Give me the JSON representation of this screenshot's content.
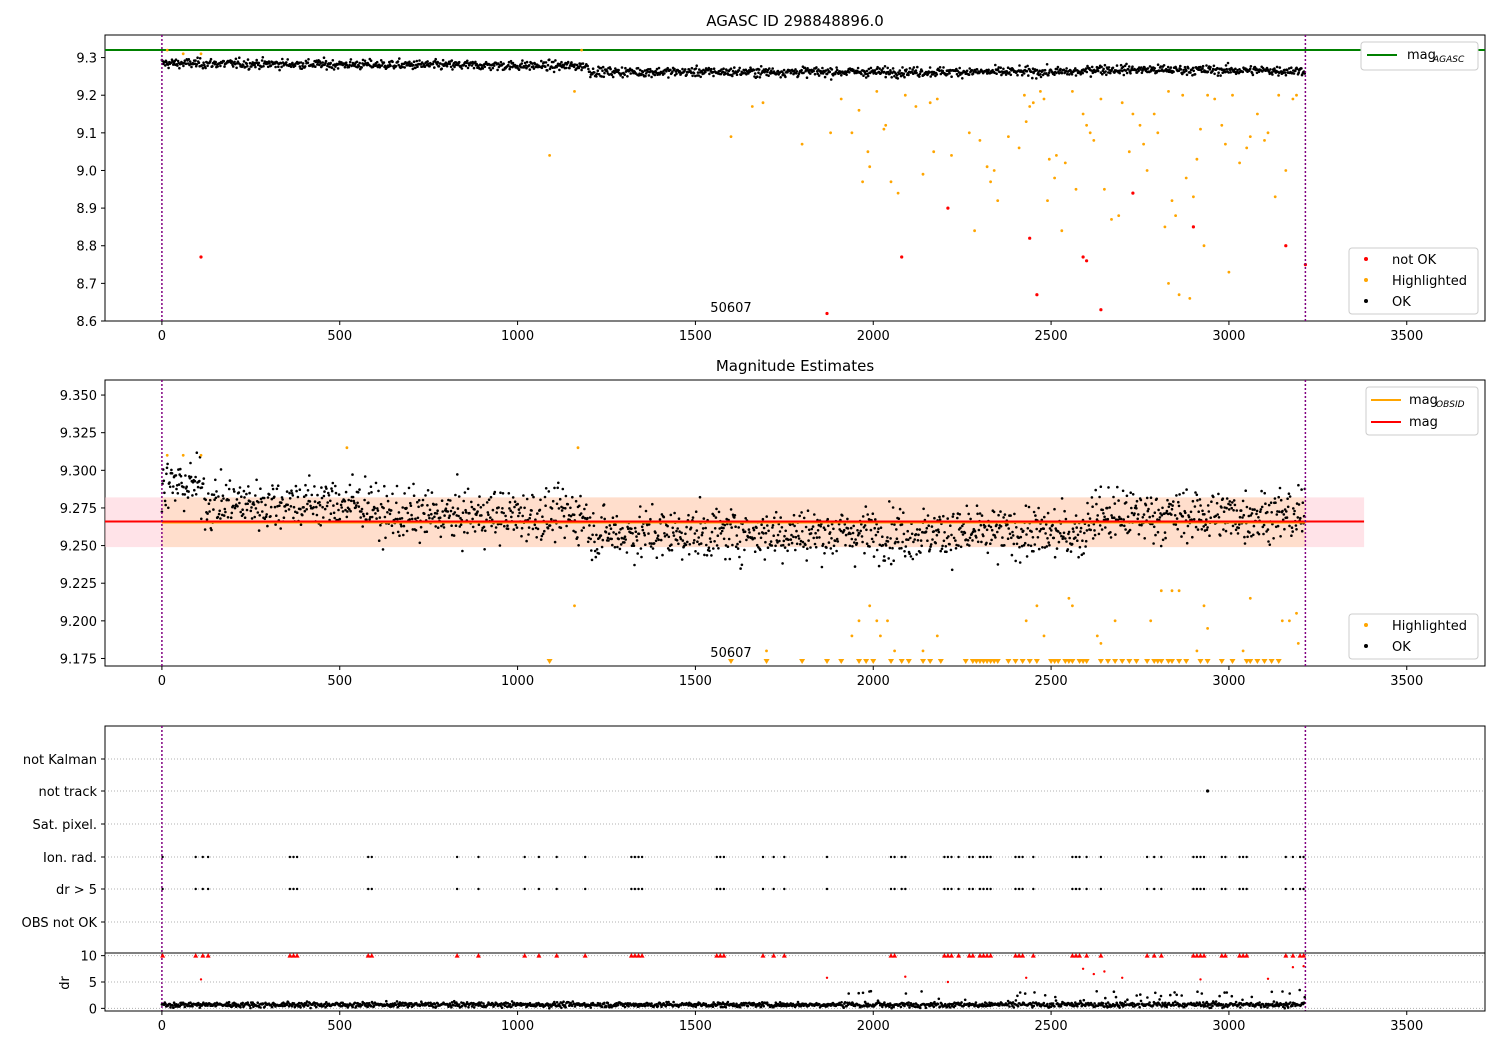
{
  "colors": {
    "ok": "#000000",
    "highlighted": "#ffa500",
    "not_ok": "#ff0000",
    "agasc_line": "#008000",
    "obsid_line": "#ffa500",
    "mag_line": "#ff0000",
    "mag_band": "#ffc0cb",
    "obsid_band": "#ffdab9",
    "boundary": "#800080"
  },
  "chart_data": [
    {
      "type": "scatter",
      "title": "AGASC ID 298848896.0",
      "xlim": [
        -160,
        3720
      ],
      "ylim": [
        8.6,
        9.36
      ],
      "xticks": [
        0,
        500,
        1000,
        1500,
        2000,
        2500,
        3000,
        3500
      ],
      "yticks": [
        8.6,
        8.7,
        8.8,
        8.9,
        9.0,
        9.1,
        9.2,
        9.3
      ],
      "ytick_labels": [
        "8.6",
        "8.7",
        "8.8",
        "8.9",
        "9.0",
        "9.1",
        "9.2",
        "9.3"
      ],
      "grid": false,
      "lines": [
        {
          "name": "mag_AGASC",
          "label_main": "mag",
          "label_sub": "AGASC",
          "y": 9.32,
          "color": "#008000"
        }
      ],
      "series": [
        {
          "name": "OK",
          "color": "#000000",
          "summary": "dense band",
          "y_center": 9.27
        },
        {
          "name": "Highlighted",
          "color": "#ffa500",
          "points": [
            [
              15,
              9.32
            ],
            [
              60,
              9.31
            ],
            [
              110,
              9.31
            ],
            [
              1090,
              9.04
            ],
            [
              1160,
              9.21
            ],
            [
              1180,
              9.32
            ],
            [
              1600,
              9.09
            ],
            [
              1660,
              9.17
            ],
            [
              1690,
              9.18
            ],
            [
              1800,
              9.07
            ],
            [
              1880,
              9.1
            ],
            [
              1910,
              9.19
            ],
            [
              1940,
              9.1
            ],
            [
              1960,
              9.16
            ],
            [
              1970,
              8.97
            ],
            [
              1985,
              9.05
            ],
            [
              1990,
              9.01
            ],
            [
              2010,
              9.21
            ],
            [
              2030,
              9.11
            ],
            [
              2035,
              9.12
            ],
            [
              2050,
              8.97
            ],
            [
              2070,
              8.94
            ],
            [
              2090,
              9.2
            ],
            [
              2120,
              9.17
            ],
            [
              2140,
              8.99
            ],
            [
              2160,
              9.18
            ],
            [
              2170,
              9.05
            ],
            [
              2180,
              9.19
            ],
            [
              2220,
              9.04
            ],
            [
              2270,
              9.1
            ],
            [
              2285,
              8.84
            ],
            [
              2300,
              9.08
            ],
            [
              2320,
              9.01
            ],
            [
              2330,
              8.97
            ],
            [
              2340,
              9.0
            ],
            [
              2350,
              8.92
            ],
            [
              2380,
              9.09
            ],
            [
              2410,
              9.06
            ],
            [
              2425,
              9.2
            ],
            [
              2430,
              9.13
            ],
            [
              2440,
              9.17
            ],
            [
              2450,
              9.18
            ],
            [
              2470,
              9.21
            ],
            [
              2480,
              9.19
            ],
            [
              2490,
              8.92
            ],
            [
              2495,
              9.03
            ],
            [
              2510,
              8.98
            ],
            [
              2515,
              9.04
            ],
            [
              2530,
              8.84
            ],
            [
              2540,
              9.02
            ],
            [
              2560,
              9.21
            ],
            [
              2570,
              8.95
            ],
            [
              2590,
              9.15
            ],
            [
              2600,
              9.12
            ],
            [
              2610,
              9.1
            ],
            [
              2620,
              9.08
            ],
            [
              2640,
              9.19
            ],
            [
              2650,
              8.95
            ],
            [
              2670,
              8.87
            ],
            [
              2690,
              8.88
            ],
            [
              2700,
              9.18
            ],
            [
              2720,
              9.05
            ],
            [
              2730,
              9.15
            ],
            [
              2750,
              9.12
            ],
            [
              2760,
              9.07
            ],
            [
              2770,
              9.0
            ],
            [
              2790,
              9.15
            ],
            [
              2800,
              9.1
            ],
            [
              2820,
              8.85
            ],
            [
              2830,
              9.21
            ],
            [
              2840,
              8.92
            ],
            [
              2850,
              8.88
            ],
            [
              2870,
              9.2
            ],
            [
              2880,
              8.98
            ],
            [
              2890,
              8.66
            ],
            [
              2900,
              8.93
            ],
            [
              2910,
              9.03
            ],
            [
              2920,
              9.11
            ],
            [
              2930,
              8.8
            ],
            [
              2940,
              9.2
            ],
            [
              2960,
              9.19
            ],
            [
              2980,
              9.12
            ],
            [
              2990,
              9.07
            ],
            [
              3000,
              8.73
            ],
            [
              3010,
              9.2
            ],
            [
              3030,
              9.02
            ],
            [
              3050,
              9.06
            ],
            [
              3060,
              9.09
            ],
            [
              3080,
              9.15
            ],
            [
              3100,
              9.08
            ],
            [
              3110,
              9.1
            ],
            [
              3130,
              8.93
            ],
            [
              3140,
              9.2
            ],
            [
              3160,
              9.0
            ],
            [
              3180,
              9.19
            ],
            [
              3190,
              9.2
            ],
            [
              2830,
              8.7
            ],
            [
              2860,
              8.67
            ]
          ]
        },
        {
          "name": "not OK",
          "color": "#ff0000",
          "points": [
            [
              110,
              8.77
            ],
            [
              1870,
              8.62
            ],
            [
              2080,
              8.77
            ],
            [
              2210,
              8.9
            ],
            [
              2440,
              8.82
            ],
            [
              2460,
              8.67
            ],
            [
              2590,
              8.77
            ],
            [
              2600,
              8.76
            ],
            [
              2640,
              8.63
            ],
            [
              2730,
              8.94
            ],
            [
              2900,
              8.85
            ],
            [
              3160,
              8.8
            ],
            [
              3215,
              8.75
            ]
          ]
        }
      ],
      "annotation": "50607",
      "vlines": [
        0,
        3215
      ],
      "legend": {
        "position": "lower-right",
        "entries": [
          "not OK",
          "Highlighted",
          "OK"
        ]
      }
    },
    {
      "type": "scatter",
      "title": "Magnitude Estimates",
      "xlim": [
        -160,
        3720
      ],
      "ylim": [
        9.17,
        9.36
      ],
      "xticks": [
        0,
        500,
        1000,
        1500,
        2000,
        2500,
        3000,
        3500
      ],
      "yticks": [
        9.175,
        9.2,
        9.225,
        9.25,
        9.275,
        9.3,
        9.325,
        9.35
      ],
      "ytick_labels": [
        "9.175",
        "9.200",
        "9.225",
        "9.250",
        "9.275",
        "9.300",
        "9.325",
        "9.350"
      ],
      "grid": false,
      "lines": [
        {
          "name": "mag_OBSID",
          "label_main": "mag",
          "label_sub": "OBSID",
          "y": 9.266,
          "x_range": [
            0,
            3215
          ],
          "color": "#ffa500"
        },
        {
          "name": "mag",
          "label_main": "mag",
          "y": 9.266,
          "x_range": [
            -160,
            3380
          ],
          "color": "#ff0000"
        }
      ],
      "bands": [
        {
          "x_range": [
            -160,
            3380
          ],
          "y_range": [
            9.249,
            9.282
          ],
          "color": "#ffc0cb"
        },
        {
          "x_range": [
            0,
            3215
          ],
          "y_range": [
            9.249,
            9.282
          ],
          "color": "#ffdab9"
        }
      ],
      "series": [
        {
          "name": "OK",
          "color": "#000000",
          "summary": "scatter around 9.265"
        },
        {
          "name": "Highlighted",
          "color": "#ffa500",
          "points": [
            [
              15,
              9.31
            ],
            [
              60,
              9.31
            ],
            [
              110,
              9.31
            ],
            [
              520,
              9.315
            ],
            [
              1160,
              9.21
            ],
            [
              1170,
              9.315
            ],
            [
              1700,
              9.18
            ],
            [
              1940,
              9.19
            ],
            [
              1960,
              9.2
            ],
            [
              1990,
              9.21
            ],
            [
              2010,
              9.2
            ],
            [
              2020,
              9.19
            ],
            [
              2040,
              9.2
            ],
            [
              2060,
              9.18
            ],
            [
              2140,
              9.18
            ],
            [
              2180,
              9.19
            ],
            [
              2430,
              9.2
            ],
            [
              2460,
              9.21
            ],
            [
              2480,
              9.19
            ],
            [
              2550,
              9.215
            ],
            [
              2560,
              9.21
            ],
            [
              2630,
              9.19
            ],
            [
              2640,
              9.185
            ],
            [
              2680,
              9.2
            ],
            [
              2780,
              9.2
            ],
            [
              2810,
              9.22
            ],
            [
              2840,
              9.22
            ],
            [
              2860,
              9.22
            ],
            [
              2930,
              9.21
            ],
            [
              2940,
              9.195
            ],
            [
              3060,
              9.215
            ],
            [
              3150,
              9.2
            ],
            [
              3170,
              9.2
            ],
            [
              3190,
              9.205
            ],
            [
              3195,
              9.185
            ],
            [
              2910,
              9.18
            ],
            [
              3040,
              9.18
            ]
          ]
        }
      ],
      "clipped_x": [
        1090,
        1600,
        1700,
        1800,
        1870,
        1910,
        1960,
        1980,
        2000,
        2050,
        2080,
        2100,
        2140,
        2160,
        2190,
        2260,
        2280,
        2290,
        2300,
        2310,
        2320,
        2330,
        2340,
        2350,
        2380,
        2400,
        2420,
        2440,
        2460,
        2500,
        2510,
        2520,
        2540,
        2550,
        2560,
        2580,
        2590,
        2600,
        2640,
        2660,
        2680,
        2700,
        2720,
        2740,
        2770,
        2790,
        2800,
        2810,
        2830,
        2840,
        2860,
        2880,
        2920,
        2940,
        2980,
        3010,
        3050,
        3060,
        3080,
        3100,
        3120,
        3140
      ],
      "annotation": "50607",
      "vlines": [
        0,
        3215
      ],
      "legend_lines": {
        "position": "top-right",
        "entries": [
          "mag_OBSID",
          "mag"
        ]
      },
      "legend": {
        "position": "lower-right",
        "entries": [
          "Highlighted",
          "OK"
        ]
      }
    },
    {
      "type": "scatter",
      "title": "",
      "xlim": [
        -160,
        3720
      ],
      "categories": [
        "not Kalman",
        "not track",
        "Sat. pixel.",
        "Ion. rad.",
        "dr > 5",
        "OBS not OK"
      ],
      "flag_x": [
        2,
        95,
        115,
        130,
        360,
        370,
        380,
        580,
        590,
        830,
        890,
        1020,
        1060,
        1110,
        1190,
        1320,
        1330,
        1340,
        1350,
        1560,
        1570,
        1580,
        1690,
        1720,
        1750,
        1870,
        2050,
        2060,
        2080,
        2090,
        2200,
        2210,
        2220,
        2240,
        2270,
        2280,
        2300,
        2310,
        2320,
        2330,
        2400,
        2410,
        2420,
        2450,
        2560,
        2570,
        2580,
        2600,
        2640,
        2770,
        2790,
        2810,
        2900,
        2910,
        2920,
        2930,
        2980,
        2990,
        3030,
        3040,
        3050,
        3160,
        3180,
        3200,
        3210
      ],
      "not_track_x": [
        2940
      ],
      "vlines": [
        0,
        3215
      ]
    },
    {
      "type": "scatter",
      "title": "",
      "ylabel": "dr",
      "xlim": [
        -160,
        3720
      ],
      "ylim": [
        -0.5,
        10.5
      ],
      "xticks": [
        0,
        500,
        1000,
        1500,
        2000,
        2500,
        3000,
        3500
      ],
      "yticks": [
        0,
        5,
        10
      ],
      "ytick_labels": [
        "0",
        "5",
        "10"
      ],
      "grid": true,
      "series": [
        {
          "name": "OK",
          "color": "#000000",
          "summary": "dr near 0-2"
        },
        {
          "name": "not OK",
          "color": "#ff0000",
          "points": [
            [
              110,
              5.5
            ],
            [
              1870,
              5.8
            ],
            [
              2090,
              6.0
            ],
            [
              2210,
              5.0
            ],
            [
              2430,
              5.8
            ],
            [
              2590,
              7.5
            ],
            [
              2620,
              6.5
            ],
            [
              2650,
              7.0
            ],
            [
              2700,
              5.8
            ],
            [
              2920,
              5.5
            ],
            [
              3110,
              5.6
            ],
            [
              3180,
              7.8
            ],
            [
              3210,
              8.0
            ]
          ]
        }
      ],
      "clipped_x": [
        2,
        95,
        115,
        130,
        360,
        370,
        380,
        580,
        590,
        830,
        890,
        1020,
        1060,
        1110,
        1190,
        1320,
        1330,
        1340,
        1350,
        1560,
        1570,
        1580,
        1690,
        1720,
        1750,
        2050,
        2060,
        2200,
        2210,
        2220,
        2240,
        2270,
        2280,
        2300,
        2310,
        2320,
        2330,
        2400,
        2410,
        2420,
        2450,
        2560,
        2570,
        2580,
        2600,
        2640,
        2770,
        2790,
        2810,
        2900,
        2910,
        2920,
        2930,
        2980,
        2990,
        3030,
        3040,
        3050,
        3160,
        3180,
        3200,
        3210
      ],
      "vlines": [
        0,
        3215
      ]
    }
  ]
}
